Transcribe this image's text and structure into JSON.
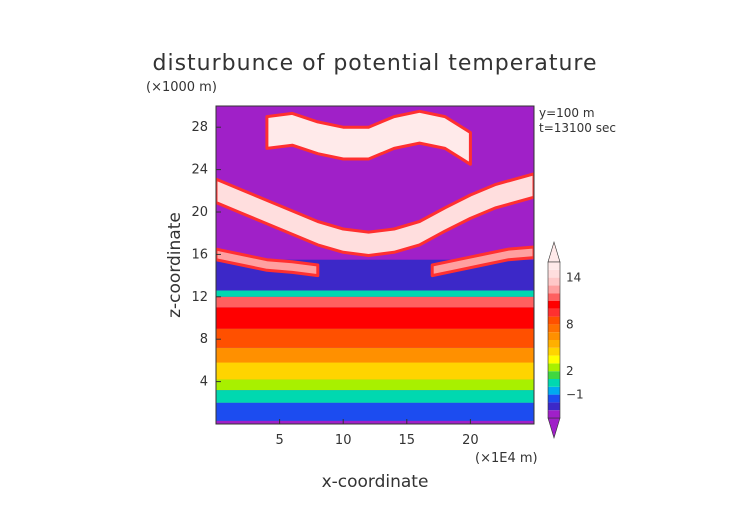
{
  "chart_data": {
    "type": "heatmap",
    "title": "disturbunce of potential temperature",
    "xlabel": "x-coordinate",
    "ylabel": "z-coordinate",
    "x_unit": "(×1E4 m)",
    "y_unit": "(×1000 m)",
    "annotations": [
      "y=100 m",
      "t=13100 sec"
    ],
    "xlim": [
      0,
      25
    ],
    "ylim": [
      0,
      30
    ],
    "x_ticks": [
      5,
      10,
      15,
      20
    ],
    "y_ticks": [
      4,
      8,
      12,
      16,
      20,
      24,
      28
    ],
    "colorbar": {
      "labels": [
        {
          "value": 14,
          "text": "14"
        },
        {
          "value": 8,
          "text": "8"
        },
        {
          "value": 2,
          "text": "2"
        },
        {
          "value": -1,
          "text": "−1"
        }
      ],
      "levels": [
        -3,
        -2,
        -1,
        0,
        1,
        2,
        3,
        4,
        5,
        6,
        7,
        8,
        9,
        10,
        11,
        12,
        13,
        14,
        15,
        16
      ],
      "colors": [
        "#a020c8",
        "#3c28c8",
        "#1c4cf0",
        "#00aaf0",
        "#00d8b0",
        "#40d840",
        "#a8f000",
        "#ffff00",
        "#ffd400",
        "#ffb000",
        "#ff9000",
        "#ff7000",
        "#ff5000",
        "#ff3030",
        "#ff0000",
        "#ff6060",
        "#ffa0a0",
        "#ffc8c8",
        "#ffdede",
        "#ffeaea"
      ]
    },
    "layers": [
      {
        "z_range": [
          0.3,
          2.0
        ],
        "value": -1.5
      },
      {
        "z_range": [
          2.0,
          3.2
        ],
        "value": 0.5
      },
      {
        "z_range": [
          3.2,
          4.2
        ],
        "value": 2.5
      },
      {
        "z_range": [
          4.2,
          5.8
        ],
        "value": 4.5
      },
      {
        "z_range": [
          5.8,
          7.2
        ],
        "value": 6.5
      },
      {
        "z_range": [
          7.2,
          9.0
        ],
        "value": 8.5
      },
      {
        "z_range": [
          9.0,
          11.0
        ],
        "value": 10.5
      },
      {
        "z_range": [
          11.0,
          12.0
        ],
        "value": 11.5
      },
      {
        "z_range": [
          12.0,
          12.6
        ],
        "value": 0.0
      },
      {
        "z_range": [
          12.6,
          15.5
        ],
        "value": -3.0
      }
    ],
    "upper_bands": [
      {
        "name": "arc",
        "x": [
          0,
          2,
          5,
          8,
          10,
          12,
          14,
          16,
          18,
          20,
          22,
          25
        ],
        "z_center": [
          22,
          21,
          19.5,
          18,
          17.3,
          17,
          17.3,
          18,
          19.3,
          20.5,
          21.5,
          22.5
        ],
        "thickness": 2.2,
        "value": 14
      },
      {
        "name": "top",
        "x": [
          4,
          6,
          8,
          10,
          12,
          14,
          16,
          18,
          20
        ],
        "z_center": [
          27.5,
          27.8,
          27,
          26.5,
          26.5,
          27.5,
          28,
          27.5,
          26
        ],
        "thickness": 3.0,
        "value": 15
      },
      {
        "name": "left-low",
        "x": [
          0,
          2,
          4,
          6,
          8
        ],
        "z_center": [
          16,
          15.5,
          15,
          14.8,
          14.5
        ],
        "thickness": 1.0,
        "value": 12
      },
      {
        "name": "right-low",
        "x": [
          17,
          19,
          21,
          23,
          25
        ],
        "z_center": [
          14.5,
          15,
          15.5,
          16,
          16.2
        ],
        "thickness": 1.0,
        "value": 12
      }
    ]
  }
}
